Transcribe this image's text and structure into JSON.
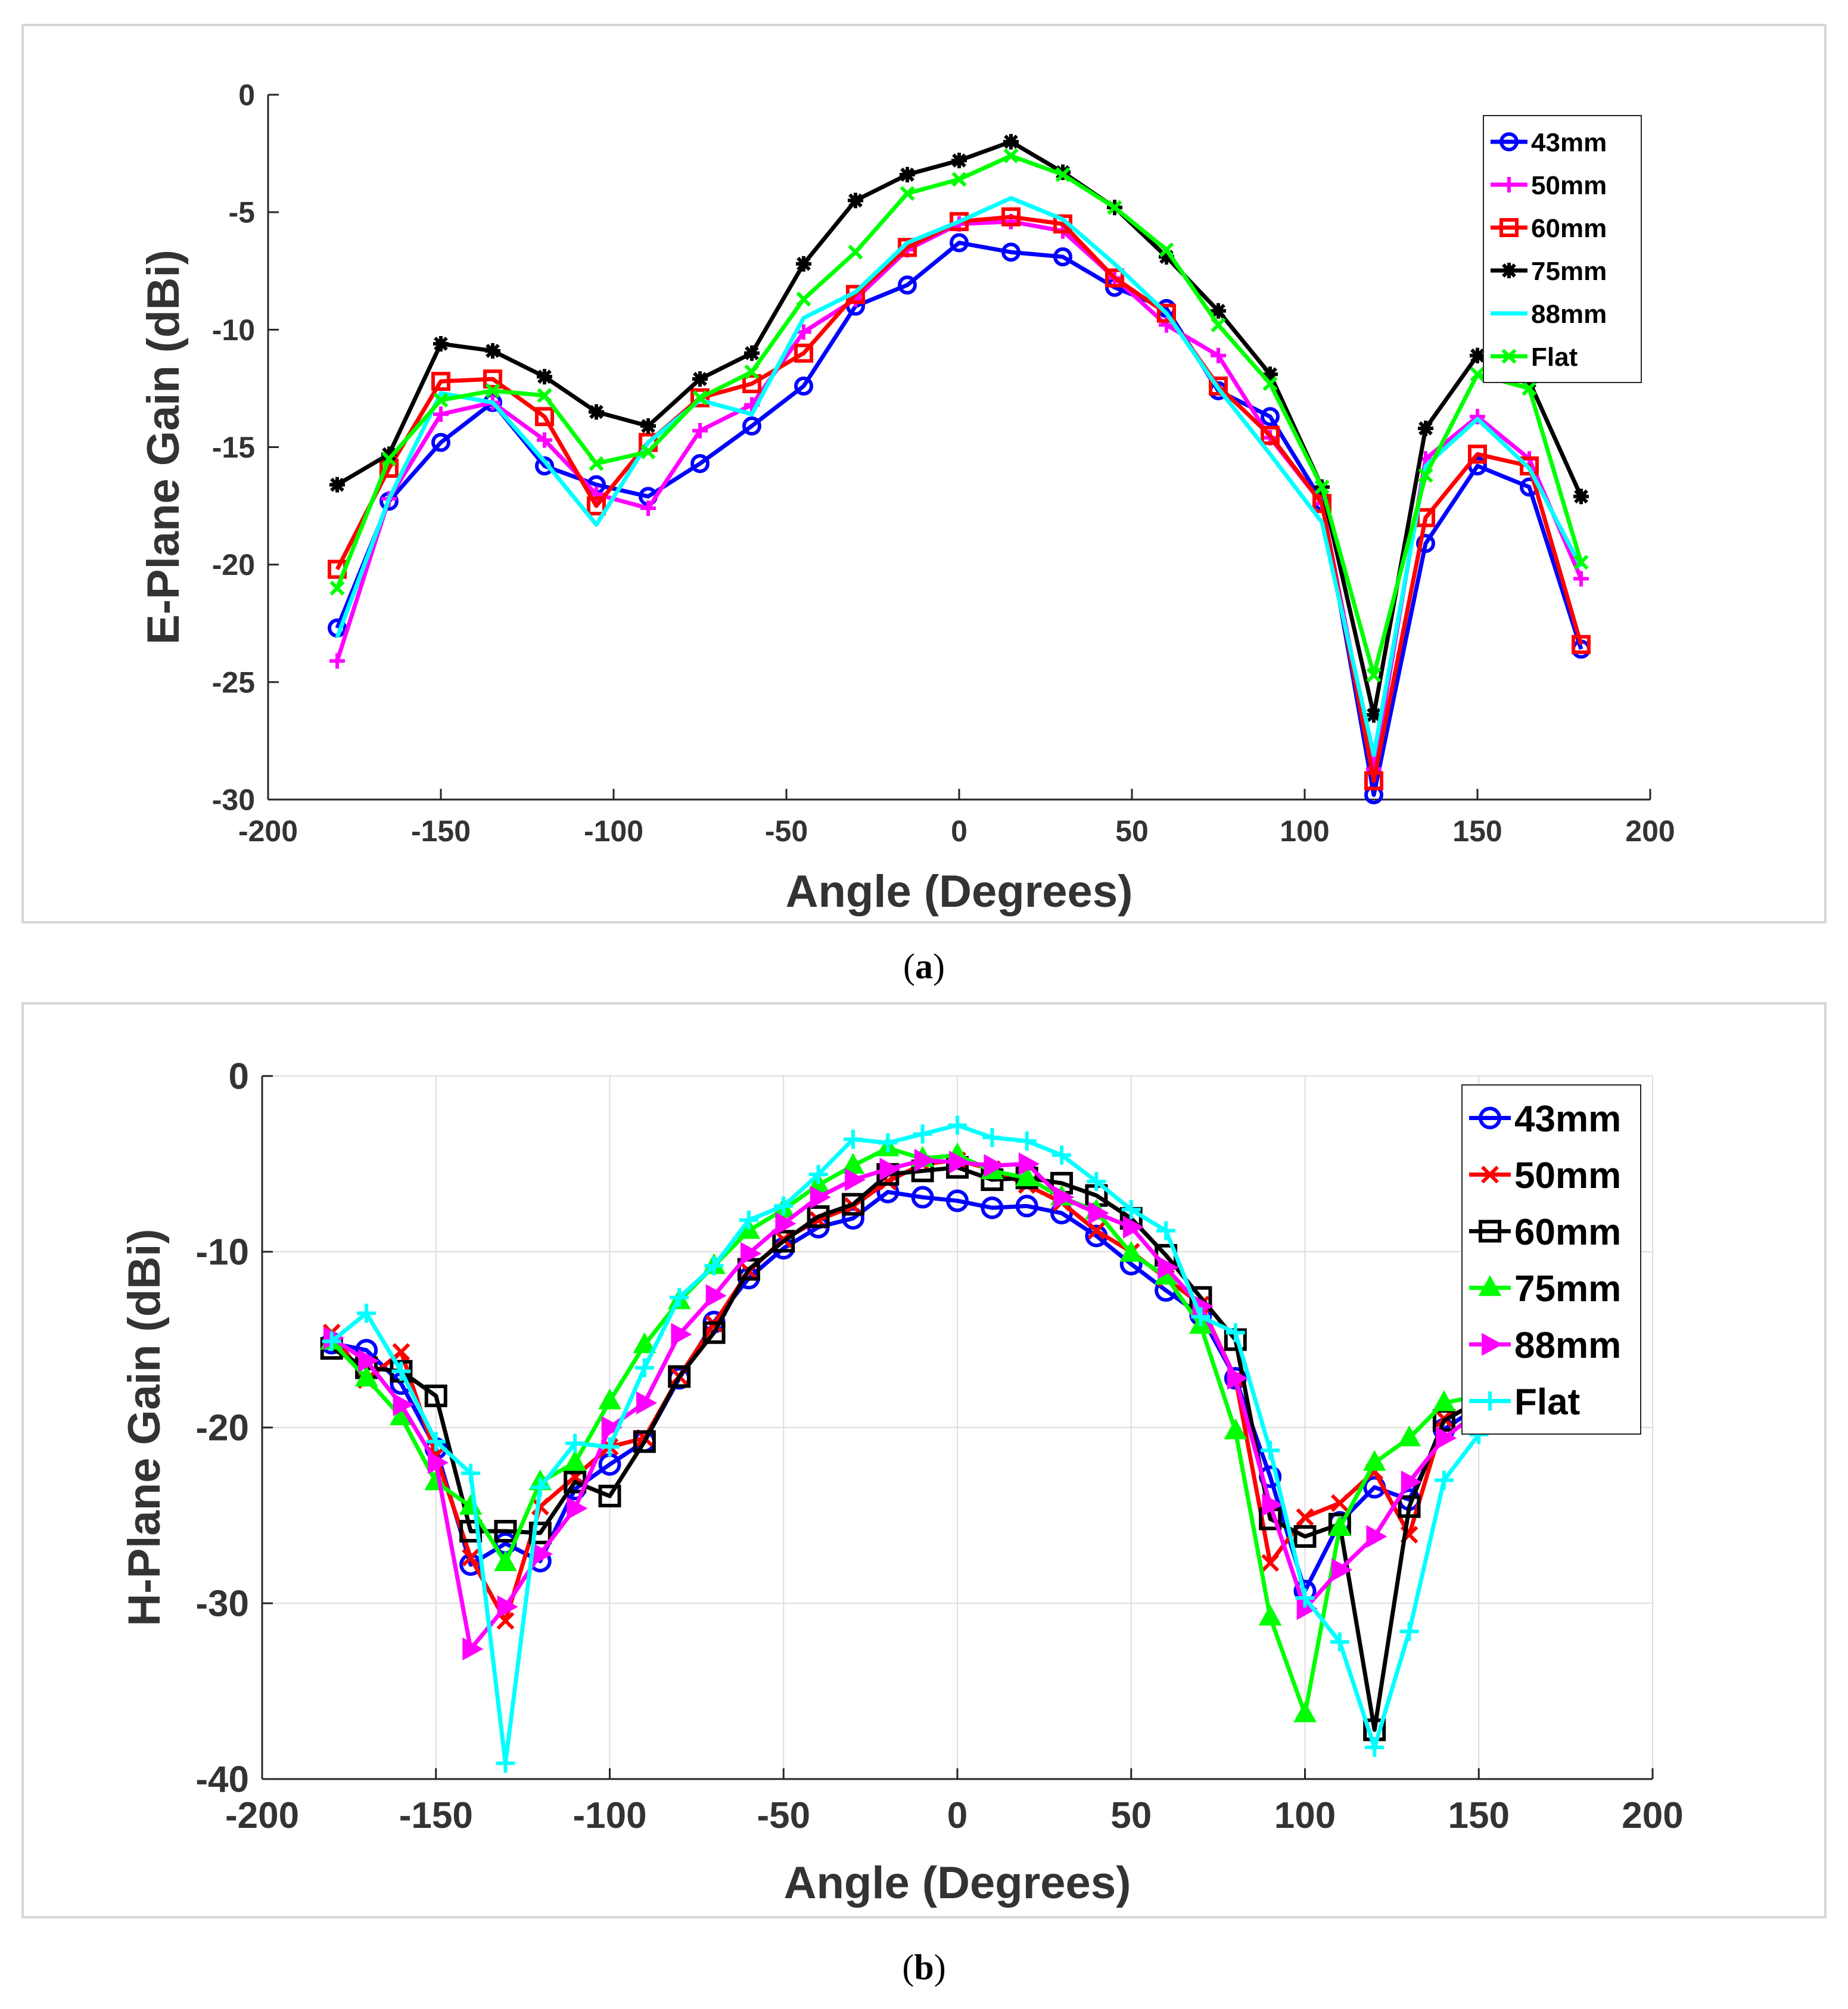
{
  "chart_data": [
    {
      "type": "line",
      "caption": "a",
      "xlabel": "Angle (Degrees)",
      "ylabel": "E-Plane Gain (dBi)",
      "xlim": [
        -200,
        200
      ],
      "ylim": [
        -30,
        0
      ],
      "xticks": [
        -200,
        -150,
        -100,
        -50,
        0,
        50,
        100,
        150,
        200
      ],
      "yticks": [
        -30,
        -25,
        -20,
        -15,
        -10,
        -5,
        0
      ],
      "grid": false,
      "legend_position": "top-right",
      "x": [
        -180,
        -165,
        -150,
        -135,
        -120,
        -105,
        -90,
        -75,
        -60,
        -45,
        -30,
        -15,
        0,
        15,
        30,
        45,
        60,
        75,
        90,
        105,
        120,
        135,
        150,
        165,
        180
      ],
      "series": [
        {
          "name": "43mm",
          "color": "#0000ff",
          "marker": "circle",
          "values": [
            -22.7,
            -17.3,
            -14.8,
            -13.1,
            -15.8,
            -16.6,
            -17.1,
            -15.7,
            -14.1,
            -12.4,
            -9.0,
            -8.1,
            -6.3,
            -6.7,
            -6.9,
            -8.2,
            -9.1,
            -12.6,
            -13.7,
            -17.3,
            -29.8,
            -19.1,
            -15.8,
            -16.7,
            -23.6
          ]
        },
        {
          "name": "50mm",
          "color": "#ff00ff",
          "marker": "plus",
          "values": [
            -24.1,
            -17.2,
            -13.6,
            -13.1,
            -14.7,
            -17.0,
            -17.6,
            -14.3,
            -13.2,
            -10.1,
            -8.7,
            -6.6,
            -5.5,
            -5.4,
            -5.8,
            -7.8,
            -9.8,
            -11.1,
            -14.6,
            -17.4,
            -28.7,
            -15.5,
            -13.7,
            -15.5,
            -20.6
          ]
        },
        {
          "name": "60mm",
          "color": "#ff0000",
          "marker": "square",
          "values": [
            -20.2,
            -15.9,
            -12.2,
            -12.1,
            -13.7,
            -17.5,
            -14.8,
            -12.9,
            -12.3,
            -11.0,
            -8.5,
            -6.5,
            -5.4,
            -5.2,
            -5.5,
            -7.8,
            -9.3,
            -12.4,
            -14.5,
            -17.4,
            -29.2,
            -18.0,
            -15.3,
            -15.8,
            -23.4
          ]
        },
        {
          "name": "75mm",
          "color": "#000000",
          "marker": "star",
          "values": [
            -16.6,
            -15.3,
            -10.6,
            -10.9,
            -12.0,
            -13.5,
            -14.1,
            -12.1,
            -11.0,
            -7.2,
            -4.5,
            -3.4,
            -2.8,
            -2.0,
            -3.3,
            -4.8,
            -6.9,
            -9.2,
            -11.9,
            -16.7,
            -26.4,
            -14.2,
            -11.1,
            -12.2,
            -17.1
          ]
        },
        {
          "name": "88mm",
          "color": "#00ffff",
          "marker": "none",
          "values": [
            -23.1,
            -17.2,
            -12.7,
            -13.1,
            -15.6,
            -18.3,
            -14.8,
            -13.0,
            -13.6,
            -9.5,
            -8.4,
            -6.3,
            -5.4,
            -4.4,
            -5.3,
            -7.2,
            -9.3,
            -12.5,
            -15.3,
            -18.2,
            -28.1,
            -15.8,
            -13.8,
            -15.9,
            -20.1
          ]
        },
        {
          "name": "Flat",
          "color": "#00ff00",
          "marker": "x",
          "values": [
            -21.0,
            -15.5,
            -13.0,
            -12.6,
            -12.8,
            -15.7,
            -15.2,
            -12.9,
            -11.8,
            -8.7,
            -6.7,
            -4.2,
            -3.6,
            -2.6,
            -3.4,
            -4.8,
            -6.6,
            -9.8,
            -12.3,
            -16.7,
            -24.7,
            -16.2,
            -11.9,
            -12.5,
            -19.9
          ]
        }
      ]
    },
    {
      "type": "line",
      "caption": "b",
      "xlabel": "Angle (Degrees)",
      "ylabel": "H-Plane Gain (dBi)",
      "xlim": [
        -200,
        200
      ],
      "ylim": [
        -40,
        0
      ],
      "xticks": [
        -200,
        -150,
        -100,
        -50,
        0,
        50,
        100,
        150,
        200
      ],
      "yticks": [
        -40,
        -30,
        -20,
        -10,
        0
      ],
      "grid": true,
      "legend_position": "top-right",
      "x": [
        -180,
        -170,
        -160,
        -150,
        -140,
        -130,
        -120,
        -110,
        -100,
        -90,
        -80,
        -70,
        -60,
        -50,
        -40,
        -30,
        -20,
        -10,
        0,
        10,
        20,
        30,
        40,
        50,
        60,
        70,
        80,
        90,
        100,
        110,
        120,
        130,
        140,
        150
      ],
      "series": [
        {
          "name": "43mm",
          "color": "#0000ff",
          "marker": "circle",
          "values": [
            -15.2,
            -15.6,
            -17.5,
            -21.2,
            -27.8,
            -26.6,
            -27.6,
            -23.5,
            -22.1,
            -20.8,
            -17.2,
            -14.0,
            -11.5,
            -9.8,
            -8.6,
            -8.1,
            -6.6,
            -6.9,
            -7.1,
            -7.5,
            -7.4,
            -7.8,
            -9.1,
            -10.7,
            -12.2,
            -13.6,
            -17.2,
            -22.8,
            -29.3,
            -25.4,
            -23.4,
            -24.1,
            -20.1,
            -18.8
          ]
        },
        {
          "name": "50mm",
          "color": "#ff0000",
          "marker": "x",
          "values": [
            -14.6,
            -17.3,
            -15.7,
            -21.6,
            -27.4,
            -31.0,
            -24.5,
            -22.8,
            -21.1,
            -20.6,
            -17.1,
            -14.1,
            -11.1,
            -9.3,
            -8.2,
            -7.4,
            -6.0,
            -5.0,
            -4.8,
            -5.3,
            -6.2,
            -7.2,
            -8.8,
            -10.0,
            -11.5,
            -13.0,
            -17.2,
            -27.7,
            -25.1,
            -24.3,
            -22.5,
            -26.1,
            -19.5,
            -18.6
          ]
        },
        {
          "name": "60mm",
          "color": "#000000",
          "marker": "square",
          "values": [
            -15.5,
            -16.6,
            -16.8,
            -18.2,
            -25.9,
            -25.9,
            -26.0,
            -23.1,
            -23.9,
            -20.8,
            -17.1,
            -14.6,
            -11.0,
            -9.4,
            -8.0,
            -7.3,
            -5.6,
            -5.4,
            -5.2,
            -5.9,
            -5.8,
            -6.1,
            -6.8,
            -8.1,
            -10.2,
            -12.6,
            -15.0,
            -25.2,
            -26.2,
            -25.5,
            -37.2,
            -24.5,
            -19.6,
            -18.5
          ]
        },
        {
          "name": "75mm",
          "color": "#00ff00",
          "marker": "triangle-up",
          "values": [
            -15.1,
            -17.2,
            -19.4,
            -23.1,
            -24.5,
            -27.7,
            -23.1,
            -22.0,
            -18.5,
            -15.3,
            -12.8,
            -10.8,
            -8.8,
            -7.6,
            -6.2,
            -5.1,
            -4.1,
            -4.7,
            -4.5,
            -5.4,
            -5.8,
            -6.9,
            -7.7,
            -10.1,
            -11.4,
            -14.2,
            -20.2,
            -30.8,
            -36.3,
            -25.7,
            -22.0,
            -20.6,
            -18.6,
            -18.2
          ]
        },
        {
          "name": "88mm",
          "color": "#ff00ff",
          "marker": "triangle-right",
          "values": [
            -14.9,
            -16.2,
            -18.7,
            -22.0,
            -32.6,
            -30.2,
            -27.2,
            -24.6,
            -20.0,
            -18.6,
            -14.7,
            -12.5,
            -10.1,
            -8.4,
            -6.9,
            -5.9,
            -5.3,
            -4.8,
            -4.9,
            -5.1,
            -5.0,
            -6.9,
            -7.8,
            -8.6,
            -10.9,
            -13.1,
            -17.2,
            -24.4,
            -30.3,
            -28.1,
            -26.2,
            -23.1,
            -20.6,
            -19.1
          ]
        },
        {
          "name": "Flat",
          "color": "#00ffff",
          "marker": "plus",
          "values": [
            -15.1,
            -13.5,
            -16.8,
            -20.8,
            -22.6,
            -39.1,
            -23.4,
            -20.9,
            -21.1,
            -16.6,
            -12.6,
            -10.8,
            -8.2,
            -7.4,
            -5.6,
            -3.6,
            -3.8,
            -3.3,
            -2.8,
            -3.5,
            -3.7,
            -4.5,
            -6.0,
            -7.6,
            -8.8,
            -13.7,
            -14.6,
            -21.3,
            -29.7,
            -32.2,
            -38.2,
            -31.6,
            -23.0,
            -20.4
          ]
        }
      ]
    }
  ],
  "captions": {
    "a": "a",
    "b": "b"
  }
}
